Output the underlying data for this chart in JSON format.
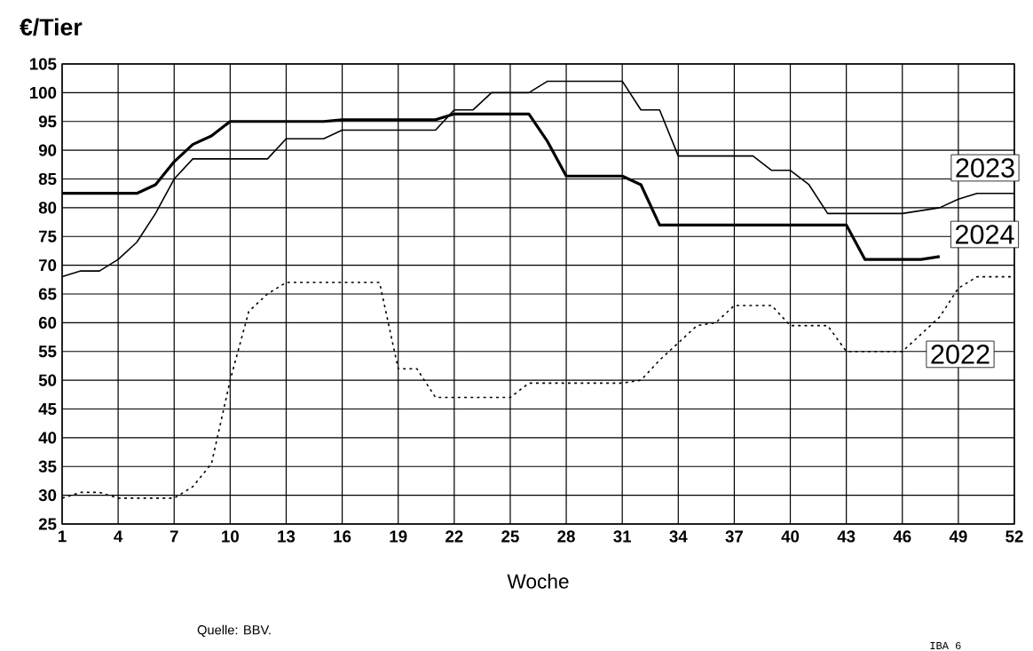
{
  "chart_data": {
    "type": "line",
    "ylabel": "€/Tier",
    "xlabel": "Woche",
    "annotations": [
      "Quelle: BBV.",
      "IBA 6"
    ],
    "xlim": [
      1,
      52
    ],
    "xticks": [
      1,
      4,
      7,
      10,
      13,
      16,
      19,
      22,
      25,
      28,
      31,
      34,
      37,
      40,
      43,
      46,
      49,
      52
    ],
    "ylim": [
      25,
      105
    ],
    "yticks": [
      25,
      30,
      35,
      40,
      45,
      50,
      55,
      60,
      65,
      70,
      75,
      80,
      85,
      90,
      95,
      100,
      105
    ],
    "grid": true,
    "marker": "none",
    "series": [
      {
        "name": "2024",
        "color": "#000000",
        "line_style": "solid",
        "x": [
          1,
          5,
          6,
          7,
          8,
          9,
          10,
          15,
          16,
          21,
          22,
          26,
          27,
          28,
          31,
          32,
          33,
          43,
          44,
          47,
          48
        ],
        "values": [
          82.5,
          82.5,
          84,
          88,
          91,
          92.5,
          95,
          95,
          95.3,
          95.3,
          96.3,
          96.3,
          91.5,
          85.5,
          85.5,
          84,
          77,
          77,
          71,
          71,
          71.5
        ]
      },
      {
        "name": "2023",
        "color": "#000000",
        "line_style": "solid",
        "x": [
          1,
          2,
          3,
          4,
          5,
          6,
          7,
          8,
          12,
          13,
          15,
          16,
          21,
          22,
          23,
          24,
          26,
          27,
          31,
          32,
          33,
          34,
          38,
          39,
          40,
          41,
          42,
          46,
          47,
          48,
          49,
          50,
          52
        ],
        "values": [
          68,
          69,
          69,
          71,
          74,
          79,
          85,
          88.5,
          88.5,
          92,
          92,
          93.5,
          93.5,
          97,
          97,
          100,
          100,
          102,
          102,
          97,
          97,
          89,
          89,
          86.5,
          86.5,
          84,
          79,
          79,
          79.5,
          80,
          81.5,
          82.5,
          82.5
        ]
      },
      {
        "name": "2022",
        "color": "#000000",
        "line_style": "dotted",
        "x": [
          1,
          2,
          3,
          4,
          7,
          8,
          9,
          10,
          11,
          12,
          13,
          18,
          19,
          20,
          21,
          25,
          26,
          31,
          32,
          33,
          34,
          35,
          36,
          37,
          39,
          40,
          42,
          43,
          46,
          47,
          48,
          49,
          50,
          52
        ],
        "values": [
          29.5,
          30.5,
          30.5,
          29.5,
          29.5,
          31.5,
          35.5,
          50,
          62,
          65,
          67,
          67,
          52,
          52,
          47,
          47,
          49.5,
          49.5,
          50,
          53.5,
          56.5,
          59.5,
          60,
          63,
          63,
          59.5,
          59.5,
          55,
          55,
          58,
          61,
          66,
          68,
          68
        ]
      }
    ]
  }
}
